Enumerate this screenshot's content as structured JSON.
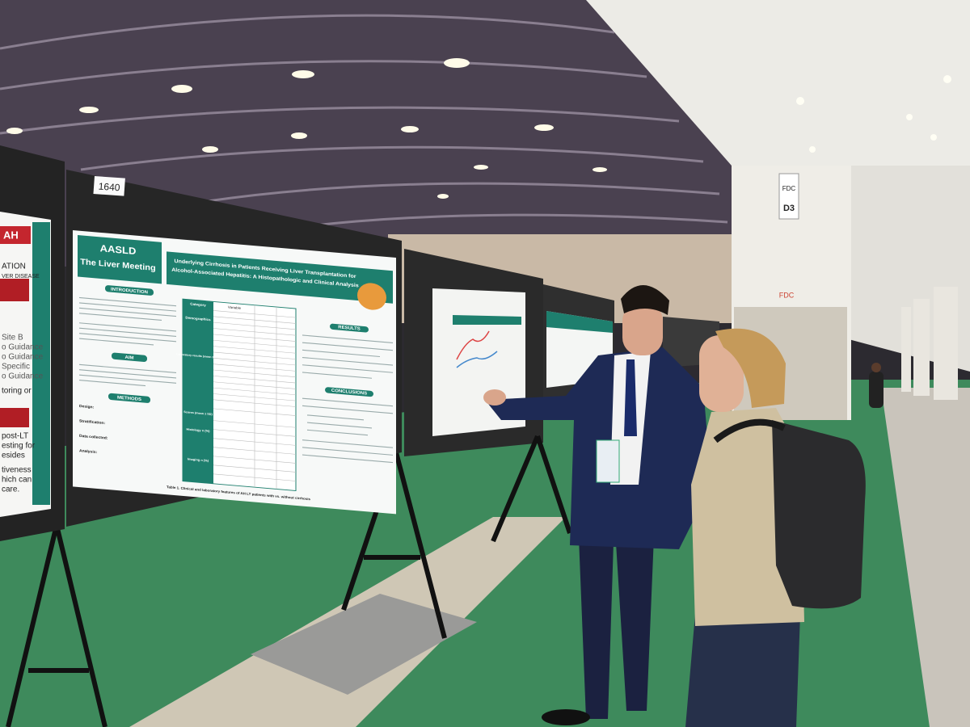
{
  "board_number": "1640",
  "poster": {
    "logo": {
      "org": "AASLD",
      "event": "The Liver Meeting"
    },
    "title": [
      "Underlying Cirrhosis in Patients Receiving Liver Transplantation for",
      "Alcohol-Associated Hepatitis: A Histopathologic and Clinical Analysis"
    ],
    "sections": {
      "introduction": "INTRODUCTION",
      "aim": "AIM",
      "methods": "METHODS",
      "results": "RESULTS",
      "conclusions": "CONCLUSIONS"
    },
    "methods_items": [
      "Design:",
      "Stratification:",
      "Data collected:",
      "Analysis:"
    ],
    "table": {
      "headers": [
        "Category",
        "Variable"
      ],
      "categories": [
        "Demographics",
        "Laboratory results (mean ± SD)",
        "Scores (mean ± SD)",
        "Histology n (%)",
        "Imaging n (%)"
      ]
    },
    "caption": "Table 1. Clinical and laboratory features of AH LT patients with vs. without cirrhosis"
  },
  "left_poster": {
    "header": "AH",
    "fragments": [
      "ATION",
      "VER DISEASE",
      "Site B",
      "o Guidance",
      "o Guidance",
      "Specific",
      "o Guidance",
      "toring or",
      "post-LT",
      "esting for",
      "esides",
      "tiveness",
      "hich can",
      "care."
    ]
  },
  "signage": {
    "venue": "FDC",
    "aisle": "D3",
    "venue_lower": "FDC"
  }
}
